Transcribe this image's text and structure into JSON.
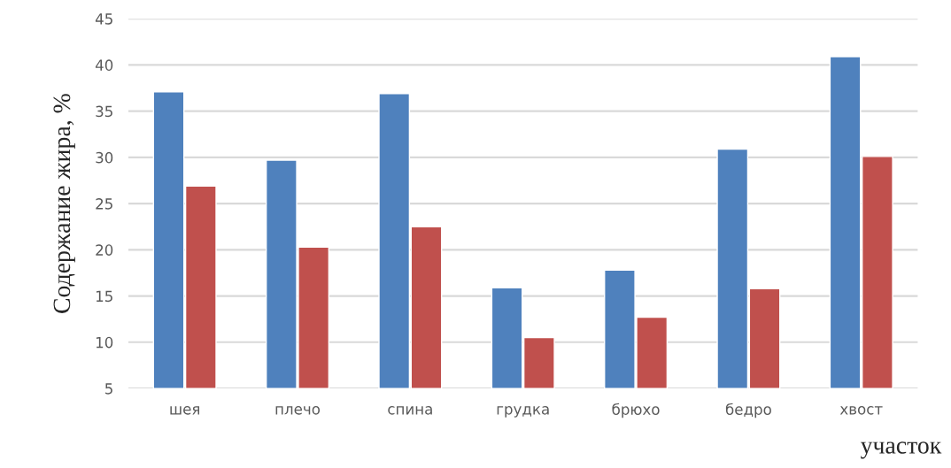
{
  "chart_data": {
    "type": "bar",
    "categories": [
      "шея",
      "плечо",
      "спина",
      "грудка",
      "брюхо",
      "бедро",
      "хвост"
    ],
    "series": [
      {
        "color": "#4f81bd",
        "values": [
          37.1,
          29.7,
          36.9,
          15.9,
          17.8,
          30.9,
          40.9
        ]
      },
      {
        "color": "#c0504d",
        "values": [
          26.9,
          20.3,
          22.5,
          10.5,
          12.7,
          15.8,
          30.1
        ]
      }
    ],
    "ylabel": "Содержание жира, %",
    "xlabel": "участок",
    "ylim": [
      5,
      45
    ],
    "yticks": [
      5,
      10,
      15,
      20,
      25,
      30,
      35,
      40,
      45
    ],
    "grid": "y",
    "legend": false
  }
}
